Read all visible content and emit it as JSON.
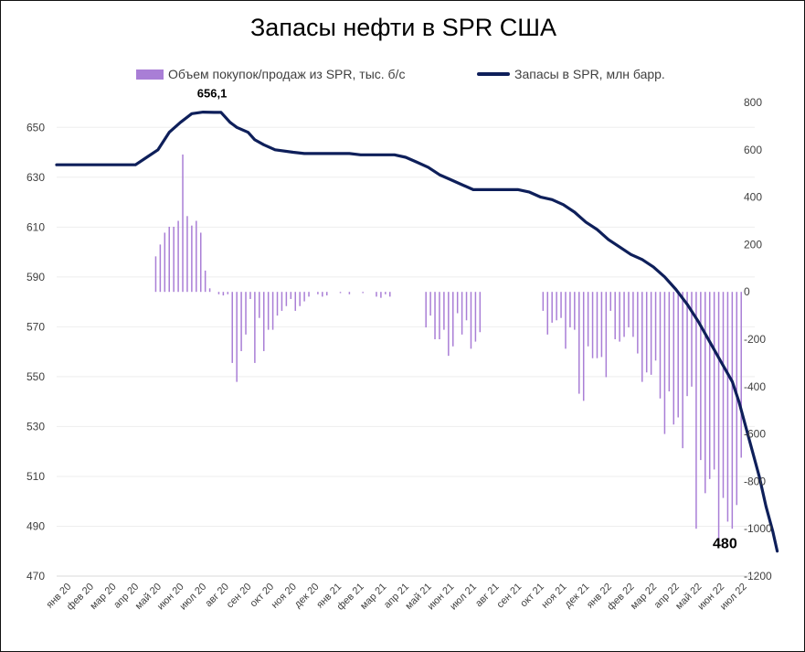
{
  "chart_data": {
    "type": "bar+line",
    "title": "Запасы нефти в SPR США",
    "legend": [
      {
        "key": "bars",
        "label": "Объем покупок/продаж из SPR, тыс. б/с",
        "color": "#a97ed6"
      },
      {
        "key": "line",
        "label": "Запасы в SPR, млн барр.",
        "color": "#0e1f5a"
      }
    ],
    "legend_position": "top",
    "grid": true,
    "x_tick_labels": [
      "янв 20",
      "фев 20",
      "мар 20",
      "апр 20",
      "май 20",
      "июн 20",
      "июл 20",
      "авг 20",
      "сен 20",
      "окт 20",
      "ноя 20",
      "дек 20",
      "янв 21",
      "фев 21",
      "мар 21",
      "апр 21",
      "май 21",
      "июн 21",
      "июл 21",
      "авг 21",
      "сен 21",
      "окт 21",
      "ноя 21",
      "дек 21",
      "янв 22",
      "фев 22",
      "мар 22",
      "апр 22",
      "май 22",
      "июн 22",
      "июл 22"
    ],
    "x_range_months": [
      0,
      31
    ],
    "left_axis": {
      "range": [
        470,
        660
      ],
      "ticks": [
        470,
        490,
        510,
        530,
        550,
        570,
        590,
        610,
        630,
        650
      ]
    },
    "right_axis": {
      "range": [
        -1200,
        800
      ],
      "ticks": [
        -1200,
        -1000,
        -800,
        -600,
        -400,
        -200,
        0,
        200,
        400,
        600,
        800
      ]
    },
    "annotations": [
      {
        "text": "656,1",
        "x_month": 6.9,
        "y": 656.1
      },
      {
        "text": "480",
        "x_month": 30.3,
        "y": 480
      }
    ],
    "line_series": {
      "name": "Запасы в SPR, млн барр.",
      "axis": "left",
      "points": [
        [
          0,
          635
        ],
        [
          1,
          635
        ],
        [
          2,
          635
        ],
        [
          3,
          635
        ],
        [
          3.5,
          635
        ],
        [
          4,
          638
        ],
        [
          4.5,
          641
        ],
        [
          5,
          648
        ],
        [
          5.5,
          652
        ],
        [
          6,
          655.5
        ],
        [
          6.5,
          656.1
        ],
        [
          7,
          656
        ],
        [
          7.3,
          656
        ],
        [
          7.7,
          652
        ],
        [
          8,
          650
        ],
        [
          8.5,
          648
        ],
        [
          8.8,
          645
        ],
        [
          9.2,
          643
        ],
        [
          9.7,
          641
        ],
        [
          10.5,
          640
        ],
        [
          11,
          639.5
        ],
        [
          12,
          639.5
        ],
        [
          13,
          639.5
        ],
        [
          13.5,
          639
        ],
        [
          14,
          639
        ],
        [
          15,
          639
        ],
        [
          15.5,
          638
        ],
        [
          16,
          636
        ],
        [
          16.5,
          634
        ],
        [
          17,
          631
        ],
        [
          17.5,
          629
        ],
        [
          18,
          627
        ],
        [
          18.5,
          625
        ],
        [
          19,
          625
        ],
        [
          20,
          625
        ],
        [
          20.5,
          625
        ],
        [
          21,
          624
        ],
        [
          21.5,
          622
        ],
        [
          22,
          621
        ],
        [
          22.5,
          619
        ],
        [
          23,
          616
        ],
        [
          23.5,
          612
        ],
        [
          24,
          609
        ],
        [
          24.5,
          605
        ],
        [
          25,
          602
        ],
        [
          25.5,
          599
        ],
        [
          26,
          597
        ],
        [
          26.5,
          594
        ],
        [
          27,
          590
        ],
        [
          27.5,
          585
        ],
        [
          28,
          579
        ],
        [
          28.5,
          572
        ],
        [
          29,
          564
        ],
        [
          29.5,
          556
        ],
        [
          30,
          548
        ],
        [
          30.3,
          540
        ],
        [
          30.6,
          530
        ],
        [
          30.9,
          520
        ],
        [
          31.2,
          510
        ],
        [
          31.5,
          498
        ],
        [
          31.8,
          488
        ],
        [
          32,
          480
        ]
      ]
    },
    "bar_series": {
      "name": "Объем покупок/продаж из SPR, тыс. б/с",
      "axis": "right",
      "points": [
        [
          4.4,
          150
        ],
        [
          4.6,
          200
        ],
        [
          4.8,
          250
        ],
        [
          5,
          275
        ],
        [
          5.2,
          275
        ],
        [
          5.4,
          300
        ],
        [
          5.6,
          580
        ],
        [
          5.8,
          320
        ],
        [
          6,
          280
        ],
        [
          6.2,
          300
        ],
        [
          6.4,
          250
        ],
        [
          6.6,
          90
        ],
        [
          6.8,
          15
        ],
        [
          7.2,
          -10
        ],
        [
          7.4,
          -15
        ],
        [
          7.6,
          -10
        ],
        [
          7.8,
          -300
        ],
        [
          8,
          -380
        ],
        [
          8.2,
          -250
        ],
        [
          8.4,
          -180
        ],
        [
          8.6,
          -30
        ],
        [
          8.8,
          -300
        ],
        [
          9,
          -110
        ],
        [
          9.2,
          -250
        ],
        [
          9.4,
          -160
        ],
        [
          9.6,
          -160
        ],
        [
          9.8,
          -100
        ],
        [
          10,
          -80
        ],
        [
          10.2,
          -60
        ],
        [
          10.4,
          -30
        ],
        [
          10.6,
          -80
        ],
        [
          10.8,
          -60
        ],
        [
          11,
          -40
        ],
        [
          11.2,
          -20
        ],
        [
          11.6,
          -10
        ],
        [
          11.8,
          -20
        ],
        [
          12,
          -15
        ],
        [
          12.6,
          -5
        ],
        [
          13,
          -10
        ],
        [
          13.6,
          -5
        ],
        [
          14.2,
          -20
        ],
        [
          14.4,
          -25
        ],
        [
          14.6,
          -10
        ],
        [
          14.8,
          -20
        ],
        [
          16.4,
          -150
        ],
        [
          16.6,
          -100
        ],
        [
          16.8,
          -200
        ],
        [
          17,
          -200
        ],
        [
          17.2,
          -160
        ],
        [
          17.4,
          -270
        ],
        [
          17.6,
          -230
        ],
        [
          17.8,
          -90
        ],
        [
          18,
          -180
        ],
        [
          18.2,
          -120
        ],
        [
          18.4,
          -240
        ],
        [
          18.6,
          -210
        ],
        [
          18.8,
          -170
        ],
        [
          21.6,
          -80
        ],
        [
          21.8,
          -180
        ],
        [
          22,
          -130
        ],
        [
          22.2,
          -120
        ],
        [
          22.4,
          -110
        ],
        [
          22.6,
          -240
        ],
        [
          22.8,
          -150
        ],
        [
          23,
          -160
        ],
        [
          23.2,
          -430
        ],
        [
          23.4,
          -460
        ],
        [
          23.6,
          -230
        ],
        [
          23.8,
          -280
        ],
        [
          24,
          -280
        ],
        [
          24.2,
          -275
        ],
        [
          24.4,
          -360
        ],
        [
          24.6,
          -80
        ],
        [
          24.8,
          -200
        ],
        [
          25,
          -210
        ],
        [
          25.2,
          -190
        ],
        [
          25.4,
          -150
        ],
        [
          25.6,
          -190
        ],
        [
          25.8,
          -260
        ],
        [
          26,
          -380
        ],
        [
          26.2,
          -340
        ],
        [
          26.4,
          -350
        ],
        [
          26.6,
          -290
        ],
        [
          26.8,
          -450
        ],
        [
          27,
          -600
        ],
        [
          27.2,
          -420
        ],
        [
          27.4,
          -560
        ],
        [
          27.6,
          -530
        ],
        [
          27.8,
          -660
        ],
        [
          28,
          -440
        ],
        [
          28.2,
          -400
        ],
        [
          28.4,
          -1000
        ],
        [
          28.6,
          -710
        ],
        [
          28.8,
          -850
        ],
        [
          29,
          -790
        ],
        [
          29.2,
          -750
        ],
        [
          29.4,
          -1070
        ],
        [
          29.6,
          -870
        ],
        [
          29.8,
          -970
        ],
        [
          30,
          -1000
        ],
        [
          30.2,
          -900
        ],
        [
          30.4,
          -700
        ]
      ]
    }
  }
}
